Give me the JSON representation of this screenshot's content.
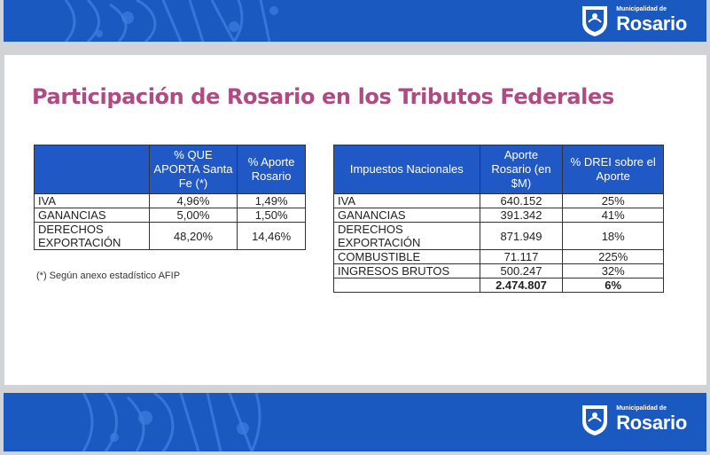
{
  "brand": {
    "small": "Municipalidad de",
    "name": "Rosario"
  },
  "title": "Participación de Rosario en los Tributos Federales",
  "table1": {
    "headers": [
      "",
      "% QUE APORTA Santa Fe (*)",
      "% Aporte Rosario"
    ],
    "rows": [
      [
        "IVA",
        "4,96%",
        "1,49%"
      ],
      [
        "GANANCIAS",
        "5,00%",
        "1,50%"
      ],
      [
        "DERECHOS EXPORTACIÓN",
        "48,20%",
        "14,46%"
      ]
    ]
  },
  "footnote": "(*) Según anexo estadístico AFIP",
  "table2": {
    "headers": [
      "Impuestos Nacionales",
      "Aporte Rosario (en $M)",
      "% DREI sobre el Aporte"
    ],
    "rows": [
      [
        "IVA",
        "640.152",
        "25%"
      ],
      [
        "GANANCIAS",
        "391.342",
        "41%"
      ],
      [
        "DERECHOS EXPORTACIÓN",
        "871.949",
        "18%"
      ],
      [
        "COMBUSTIBLE",
        "71.117",
        "225%"
      ],
      [
        "INGRESOS BRUTOS",
        "500.247",
        "32%"
      ]
    ],
    "total": [
      "",
      "2.474.807",
      "6%"
    ]
  },
  "colors": {
    "band": "#1a59c0",
    "header": "#2059c6",
    "title": "#ad4b83"
  }
}
